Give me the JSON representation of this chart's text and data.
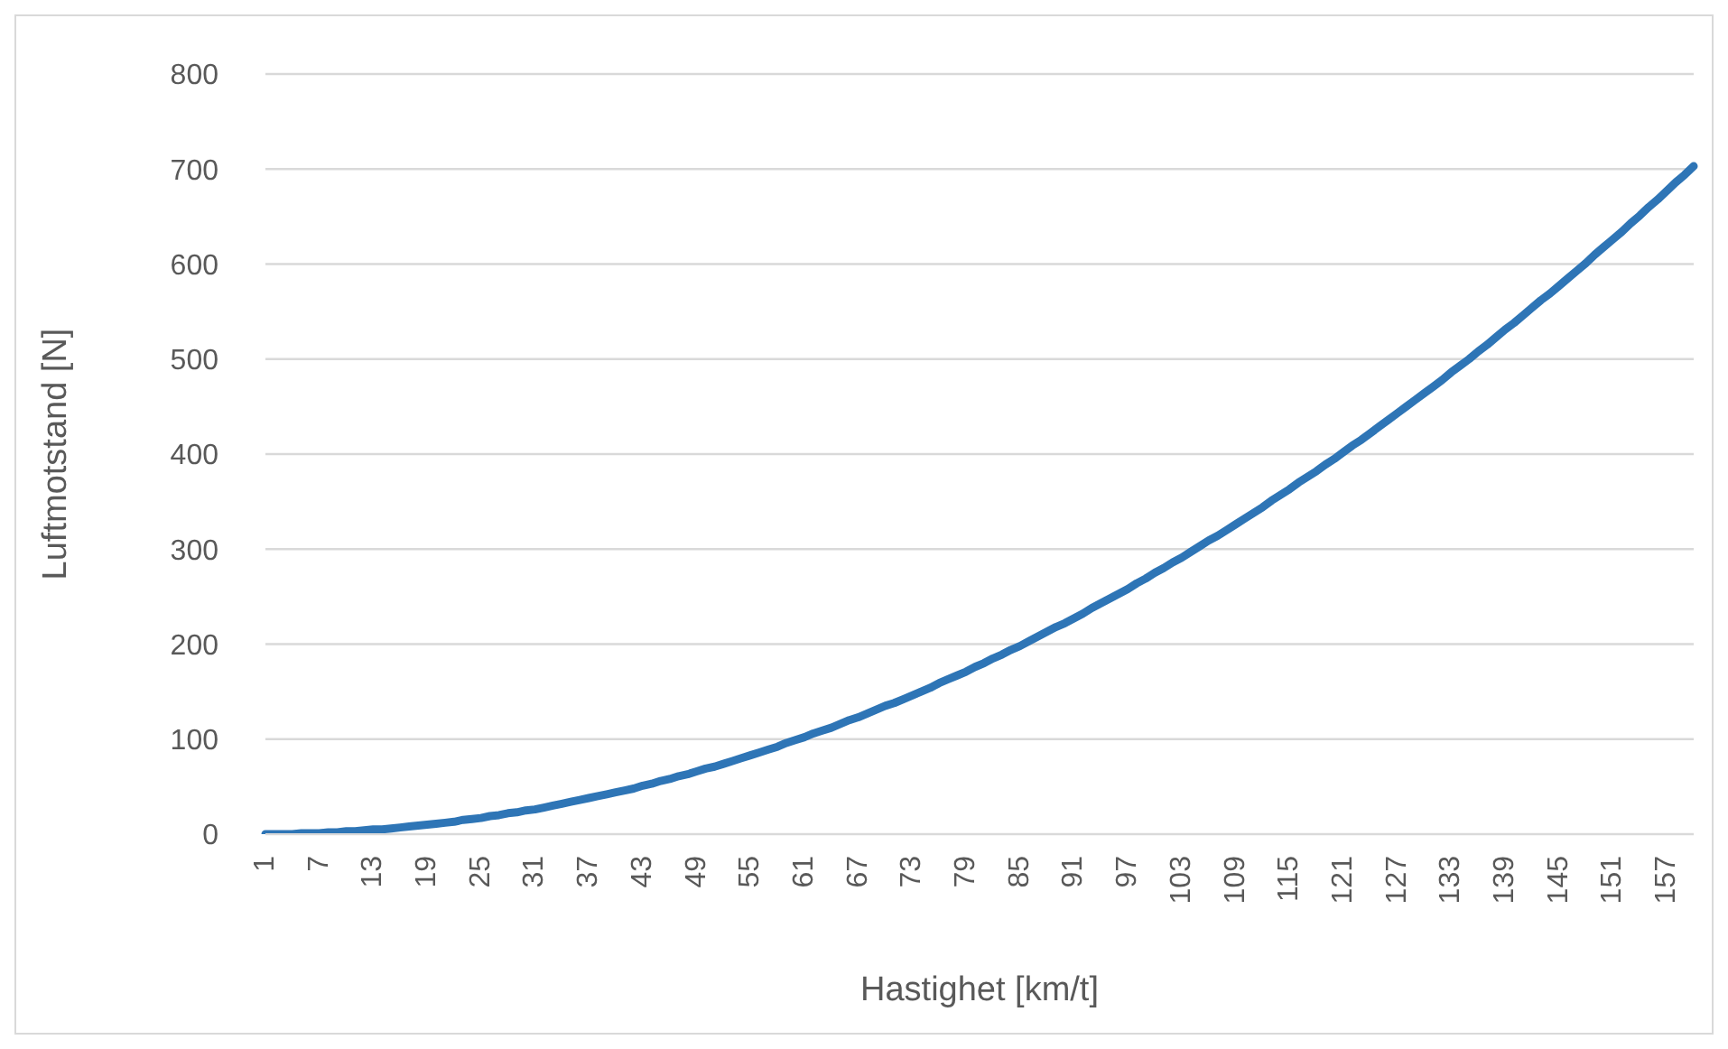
{
  "chart_data": {
    "type": "line",
    "xlabel": "Hastighet [km/t]",
    "ylabel": "Luftmotstand [N]",
    "categories": [
      "1",
      null,
      null,
      null,
      null,
      null,
      "7",
      null,
      null,
      null,
      null,
      null,
      "13",
      null,
      null,
      null,
      null,
      null,
      "19",
      null,
      null,
      null,
      null,
      null,
      "25",
      null,
      null,
      null,
      null,
      null,
      "31",
      null,
      null,
      null,
      null,
      null,
      "37",
      null,
      null,
      null,
      null,
      null,
      "43",
      null,
      null,
      null,
      null,
      null,
      "49",
      null,
      null,
      null,
      null,
      null,
      "55",
      null,
      null,
      null,
      null,
      null,
      "61",
      null,
      null,
      null,
      null,
      null,
      "67",
      null,
      null,
      null,
      null,
      null,
      "73",
      null,
      null,
      null,
      null,
      null,
      "79",
      null,
      null,
      null,
      null,
      null,
      "85",
      null,
      null,
      null,
      null,
      null,
      "91",
      null,
      null,
      null,
      null,
      null,
      "97",
      null,
      null,
      null,
      null,
      null,
      "103",
      null,
      null,
      null,
      null,
      null,
      "109",
      null,
      null,
      null,
      null,
      null,
      "115",
      null,
      null,
      null,
      null,
      null,
      "121",
      null,
      null,
      null,
      null,
      null,
      "127",
      null,
      null,
      null,
      null,
      null,
      "133",
      null,
      null,
      null,
      null,
      null,
      "139",
      null,
      null,
      null,
      null,
      null,
      "145",
      null,
      null,
      null,
      null,
      null,
      "151",
      null,
      null,
      null,
      null,
      null,
      "157",
      null,
      null,
      null
    ],
    "series": [
      {
        "color": "#2e75b6",
        "values": [
          0,
          0,
          0,
          0,
          1,
          1,
          1,
          2,
          2,
          3,
          3,
          4,
          5,
          5,
          6,
          7,
          8,
          9,
          10,
          11,
          12,
          13,
          15,
          16,
          17,
          19,
          20,
          22,
          23,
          25,
          26,
          28,
          30,
          32,
          34,
          36,
          38,
          40,
          42,
          44,
          46,
          48,
          51,
          53,
          56,
          58,
          61,
          63,
          66,
          69,
          71,
          74,
          77,
          80,
          83,
          86,
          89,
          92,
          96,
          99,
          102,
          106,
          109,
          112,
          116,
          120,
          123,
          127,
          131,
          135,
          138,
          142,
          146,
          150,
          154,
          159,
          163,
          167,
          171,
          176,
          180,
          185,
          189,
          194,
          198,
          203,
          208,
          213,
          218,
          222,
          227,
          232,
          238,
          243,
          248,
          253,
          258,
          264,
          269,
          275,
          280,
          286,
          291,
          297,
          303,
          309,
          314,
          320,
          326,
          332,
          338,
          344,
          351,
          357,
          363,
          370,
          376,
          382,
          389,
          395,
          402,
          409,
          415,
          422,
          429,
          436,
          443,
          450,
          457,
          464,
          471,
          478,
          486,
          493,
          500,
          508,
          515,
          523,
          531,
          538,
          546,
          554,
          562,
          569,
          577,
          585,
          593,
          601,
          610,
          618,
          626,
          634,
          643,
          651,
          660,
          668,
          677,
          686,
          694,
          703
        ]
      }
    ],
    "ylim": [
      0,
      800
    ],
    "yticks": [
      0,
      100,
      200,
      300,
      400,
      500,
      600,
      700,
      800
    ],
    "grid": "y",
    "marker": "none",
    "line_style": "solid"
  }
}
